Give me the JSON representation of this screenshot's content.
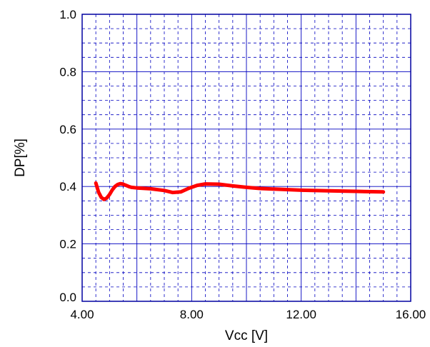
{
  "chart_data": {
    "type": "line",
    "title": "",
    "xlabel": "Vcc [V]",
    "ylabel": "DP[%]",
    "xlim": [
      4.0,
      16.0
    ],
    "ylim": [
      0.0,
      1.0
    ],
    "x_ticks": [
      {
        "value": 4,
        "label": "4.00"
      },
      {
        "value": 8,
        "label": "8.00"
      },
      {
        "value": 12,
        "label": "12.00"
      },
      {
        "value": 16,
        "label": "16.00"
      }
    ],
    "y_ticks": [
      {
        "value": 0.0,
        "label": "0.0"
      },
      {
        "value": 0.2,
        "label": "0.2"
      },
      {
        "value": 0.4,
        "label": "0.4"
      },
      {
        "value": 0.6,
        "label": "0.6"
      },
      {
        "value": 0.8,
        "label": "0.8"
      },
      {
        "value": 1.0,
        "label": "1.0"
      }
    ],
    "grid": true,
    "colors": {
      "frame": "#0000a0",
      "grid_major": "#0000c0",
      "grid_minor": "#0000c0",
      "series": "#ff0000"
    },
    "series": [
      {
        "x": [
          4.5,
          4.6,
          4.7,
          4.8,
          4.9,
          5.0,
          5.1,
          5.2,
          5.3,
          5.4,
          5.5,
          5.6,
          5.7,
          5.8,
          6.0,
          6.5,
          7.0,
          7.3,
          7.6,
          7.9,
          8.2,
          8.5,
          9.0,
          9.5,
          10.0,
          10.5,
          11.0,
          12.0,
          13.0,
          14.0,
          15.0
        ],
        "y": [
          0.412,
          0.38,
          0.362,
          0.355,
          0.36,
          0.372,
          0.388,
          0.4,
          0.407,
          0.41,
          0.408,
          0.404,
          0.4,
          0.397,
          0.395,
          0.392,
          0.386,
          0.379,
          0.381,
          0.394,
          0.404,
          0.409,
          0.408,
          0.402,
          0.397,
          0.393,
          0.391,
          0.387,
          0.385,
          0.383,
          0.381
        ]
      }
    ]
  }
}
